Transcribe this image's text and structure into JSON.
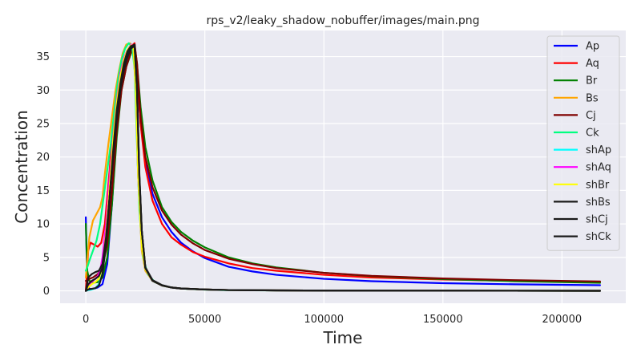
{
  "chart_data": {
    "type": "line",
    "title": "rps_v2/leaky_shadow_nobuffer/images/main.png",
    "xlabel": "Time",
    "ylabel": "Concentration",
    "xlim": [
      -10800,
      226800
    ],
    "ylim": [
      -1.85,
      38.9
    ],
    "xticks": [
      0,
      50000,
      100000,
      150000,
      200000
    ],
    "xtick_labels": [
      "0",
      "50000",
      "100000",
      "150000",
      "200000"
    ],
    "yticks": [
      0,
      5,
      10,
      15,
      20,
      25,
      30,
      35
    ],
    "ytick_labels": [
      "0",
      "5",
      "10",
      "15",
      "20",
      "25",
      "30",
      "35"
    ],
    "grid": true,
    "legend_position": "top-right",
    "series": [
      {
        "name": "Ap",
        "color": "#0000ff",
        "x": [
          0,
          600,
          1500,
          3000,
          5000,
          7000,
          9000,
          11000,
          13000,
          15000,
          17000,
          19000,
          20500,
          21500,
          23000,
          25000,
          28000,
          32000,
          36000,
          40000,
          45000,
          50000,
          60000,
          70000,
          80000,
          100000,
          120000,
          150000,
          180000,
          216000
        ],
        "y": [
          11.0,
          1.0,
          0.3,
          0.3,
          0.5,
          1.0,
          4.0,
          13.0,
          24.0,
          31.0,
          34.5,
          36.0,
          36.5,
          33.0,
          25.0,
          19.5,
          14.5,
          11.0,
          8.8,
          7.2,
          5.9,
          4.9,
          3.6,
          2.9,
          2.4,
          1.8,
          1.45,
          1.15,
          0.98,
          0.85
        ]
      },
      {
        "name": "Aq",
        "color": "#ff0000",
        "x": [
          0,
          1000,
          2000,
          3000,
          4000,
          5000,
          6500,
          8000,
          10000,
          11500,
          13000,
          15000,
          17000,
          19000,
          20500,
          21500,
          23000,
          25000,
          28000,
          32000,
          36000,
          40000,
          45000,
          50000,
          60000,
          70000,
          80000,
          100000,
          120000,
          150000,
          180000,
          216000
        ],
        "y": [
          0.0,
          6.0,
          7.2,
          7.0,
          6.8,
          6.6,
          7.2,
          10.0,
          18.0,
          25.0,
          29.0,
          32.5,
          35.0,
          36.5,
          37.0,
          33.0,
          25.0,
          18.5,
          13.5,
          10.0,
          8.0,
          6.9,
          5.8,
          5.1,
          4.1,
          3.4,
          3.0,
          2.4,
          2.0,
          1.7,
          1.5,
          1.35
        ]
      },
      {
        "name": "Br",
        "color": "#008000",
        "x": [
          0,
          600,
          1500,
          3000,
          5000,
          7000,
          9000,
          11000,
          13000,
          15000,
          17000,
          19000,
          20500,
          21500,
          23000,
          25000,
          28000,
          32000,
          36000,
          40000,
          45000,
          50000,
          60000,
          70000,
          80000,
          100000,
          120000,
          150000,
          180000,
          216000
        ],
        "y": [
          10.0,
          3.0,
          1.5,
          1.2,
          1.3,
          2.0,
          5.0,
          13.0,
          23.0,
          30.0,
          33.5,
          35.5,
          36.5,
          34.0,
          27.5,
          21.5,
          16.5,
          12.5,
          10.3,
          8.8,
          7.5,
          6.5,
          5.0,
          4.1,
          3.5,
          2.7,
          2.2,
          1.75,
          1.45,
          1.2
        ]
      },
      {
        "name": "Bs",
        "color": "#ffa500",
        "x": [
          0,
          600,
          1500,
          3000,
          4500,
          6000,
          7000,
          8000,
          9500,
          11000,
          12500,
          14000,
          15500,
          17000,
          18500,
          20000,
          21000,
          22000,
          23500,
          25000,
          28000,
          32000,
          36000,
          40000,
          50000,
          60000,
          80000,
          100000,
          150000,
          216000
        ],
        "y": [
          2.0,
          4.5,
          8.0,
          10.5,
          11.5,
          12.5,
          14.0,
          17.5,
          22.0,
          26.0,
          30.0,
          33.0,
          35.5,
          36.8,
          37.0,
          36.5,
          30.0,
          17.0,
          6.0,
          3.0,
          1.5,
          0.8,
          0.5,
          0.35,
          0.2,
          0.12,
          0.07,
          0.04,
          0.02,
          0.01
        ]
      },
      {
        "name": "Cj",
        "color": "#800000",
        "x": [
          0,
          600,
          1500,
          3000,
          5000,
          7000,
          9000,
          11000,
          13000,
          15000,
          17000,
          19000,
          20500,
          21500,
          23000,
          25000,
          28000,
          32000,
          36000,
          40000,
          45000,
          50000,
          60000,
          70000,
          80000,
          100000,
          120000,
          150000,
          180000,
          216000
        ],
        "y": [
          1.5,
          1.5,
          1.8,
          2.0,
          2.5,
          3.5,
          7.0,
          15.0,
          24.0,
          30.0,
          33.5,
          35.8,
          36.8,
          34.0,
          26.0,
          20.0,
          15.5,
          12.0,
          9.9,
          8.4,
          7.1,
          6.1,
          4.8,
          4.0,
          3.4,
          2.7,
          2.25,
          1.85,
          1.6,
          1.4
        ]
      },
      {
        "name": "Ck",
        "color": "#00ff7f",
        "x": [
          0,
          600,
          1500,
          3000,
          4500,
          6000,
          7500,
          9000,
          10500,
          12000,
          13500,
          15000,
          16500,
          18000,
          19500,
          20500,
          21500,
          22500,
          24000,
          26000,
          29000,
          33000,
          37000,
          42000,
          50000,
          60000,
          80000,
          100000,
          150000,
          216000
        ],
        "y": [
          3.0,
          3.5,
          4.5,
          6.0,
          7.5,
          10.0,
          14.0,
          18.0,
          22.0,
          27.0,
          31.5,
          34.5,
          36.2,
          37.0,
          36.5,
          33.0,
          22.0,
          12.0,
          5.0,
          2.5,
          1.3,
          0.7,
          0.45,
          0.3,
          0.18,
          0.1,
          0.06,
          0.04,
          0.02,
          0.01
        ]
      },
      {
        "name": "shAp",
        "color": "#00ffff",
        "x": [
          0,
          1000,
          2500,
          4000,
          5500,
          7000,
          8500,
          10000,
          11500,
          13000,
          14500,
          16000,
          17500,
          19000,
          20000,
          21000,
          22000,
          23500,
          25000,
          28000,
          32000,
          36000,
          40000,
          50000,
          60000,
          80000,
          100000,
          150000,
          216000
        ],
        "y": [
          0.0,
          0.1,
          0.2,
          0.4,
          1.0,
          3.0,
          8.0,
          15.0,
          22.0,
          28.0,
          32.0,
          34.5,
          36.0,
          36.8,
          36.5,
          30.0,
          17.0,
          6.5,
          3.2,
          1.5,
          0.8,
          0.5,
          0.35,
          0.2,
          0.12,
          0.07,
          0.04,
          0.02,
          0.01
        ]
      },
      {
        "name": "shAq",
        "color": "#ff00ff",
        "x": [
          0,
          1000,
          2000,
          3000,
          4000,
          5000,
          6000,
          7000,
          8500,
          10000,
          11500,
          13000,
          14500,
          16000,
          17500,
          19000,
          20000,
          21000,
          22000,
          23500,
          25000,
          28000,
          32000,
          36000,
          40000,
          50000,
          60000,
          80000,
          100000,
          150000,
          216000
        ],
        "y": [
          0.0,
          0.8,
          1.2,
          1.5,
          1.8,
          2.2,
          3.0,
          5.0,
          10.0,
          17.0,
          23.0,
          28.5,
          32.5,
          34.8,
          36.0,
          36.8,
          36.5,
          30.0,
          17.0,
          6.5,
          3.2,
          1.5,
          0.8,
          0.5,
          0.35,
          0.2,
          0.12,
          0.07,
          0.04,
          0.02,
          0.01
        ]
      },
      {
        "name": "shBr",
        "color": "#ffff00",
        "x": [
          0,
          1000,
          2500,
          4000,
          5500,
          7000,
          8500,
          10000,
          11500,
          13000,
          14500,
          16000,
          17500,
          19000,
          20000,
          21000,
          22000,
          23500,
          25000,
          28000,
          32000,
          36000,
          40000,
          50000,
          60000,
          80000,
          100000,
          150000,
          216000
        ],
        "y": [
          0.0,
          0.5,
          1.0,
          1.3,
          1.8,
          3.5,
          8.5,
          15.5,
          22.5,
          28.0,
          32.0,
          34.5,
          36.0,
          36.7,
          36.4,
          30.0,
          17.0,
          6.5,
          3.2,
          1.5,
          0.8,
          0.5,
          0.35,
          0.2,
          0.12,
          0.07,
          0.04,
          0.02,
          0.01
        ]
      },
      {
        "name": "shBs",
        "color": "#1a1a1a",
        "x": [
          0,
          1000,
          2500,
          4000,
          5500,
          7000,
          8500,
          10000,
          11500,
          13000,
          14500,
          16000,
          17500,
          19000,
          20500,
          21500,
          22500,
          23500,
          25000,
          28000,
          32000,
          36000,
          40000,
          50000,
          60000,
          80000,
          100000,
          150000,
          216000
        ],
        "y": [
          0.0,
          2.0,
          2.5,
          2.8,
          3.0,
          4.0,
          8.0,
          14.0,
          20.0,
          25.5,
          30.0,
          33.0,
          35.0,
          36.2,
          36.6,
          30.0,
          17.0,
          9.0,
          3.5,
          1.6,
          0.85,
          0.5,
          0.35,
          0.2,
          0.12,
          0.07,
          0.04,
          0.02,
          0.01
        ]
      },
      {
        "name": "shCj",
        "color": "#1a1a1a",
        "x": [
          0,
          1000,
          2500,
          4000,
          5500,
          7000,
          8500,
          10000,
          11500,
          13000,
          14500,
          16000,
          17500,
          19000,
          20500,
          21500,
          22500,
          23500,
          25000,
          28000,
          32000,
          36000,
          40000,
          50000,
          60000,
          80000,
          100000,
          150000,
          216000
        ],
        "y": [
          0.0,
          1.0,
          1.5,
          1.8,
          2.2,
          3.5,
          7.5,
          14.0,
          20.5,
          26.0,
          30.5,
          33.5,
          35.5,
          36.5,
          36.8,
          30.5,
          17.5,
          9.0,
          3.5,
          1.6,
          0.85,
          0.5,
          0.35,
          0.2,
          0.12,
          0.07,
          0.04,
          0.02,
          0.01
        ]
      },
      {
        "name": "shCk",
        "color": "#1a1a1a",
        "x": [
          0,
          1000,
          2500,
          4000,
          5500,
          7000,
          8500,
          10000,
          11500,
          13000,
          14500,
          16000,
          17500,
          19000,
          20500,
          21500,
          22500,
          23500,
          25000,
          28000,
          32000,
          36000,
          40000,
          50000,
          60000,
          80000,
          100000,
          150000,
          216000
        ],
        "y": [
          0.0,
          0.2,
          0.3,
          0.4,
          0.8,
          2.5,
          7.0,
          14.0,
          21.0,
          27.0,
          31.0,
          34.0,
          35.8,
          36.6,
          36.5,
          30.0,
          17.0,
          9.0,
          3.4,
          1.5,
          0.8,
          0.5,
          0.35,
          0.2,
          0.12,
          0.07,
          0.04,
          0.02,
          0.01
        ]
      }
    ]
  }
}
